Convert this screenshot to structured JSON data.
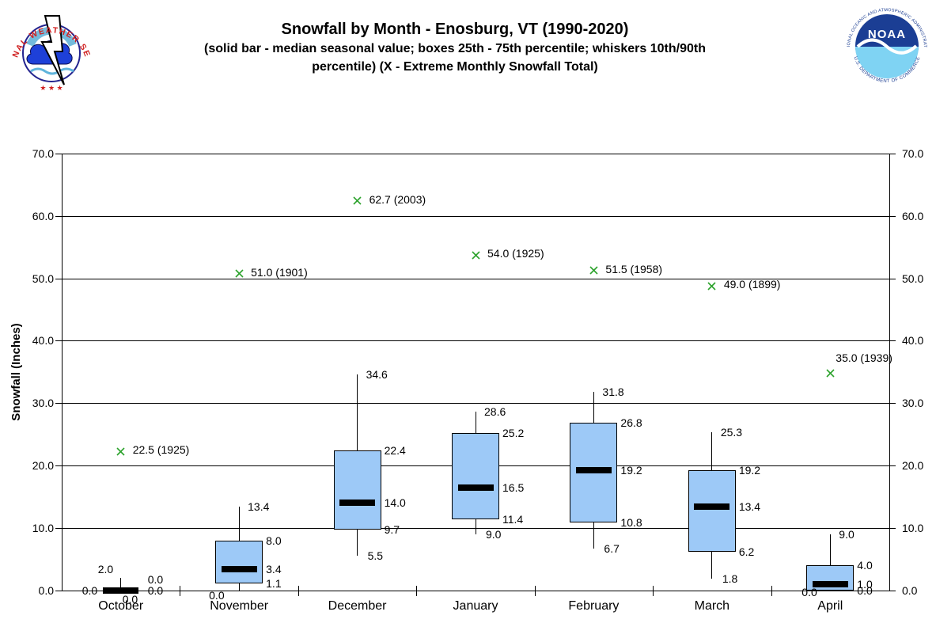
{
  "header": {
    "title": "Snowfall by Month - Enosburg, VT (1990-2020)",
    "subtitle_lines": [
      "(solid bar - median seasonal value; boxes 25th - 75th percentile; whiskers 10th/90th",
      "percentile) (X - Extreme Monthly Snowfall Total)"
    ],
    "nws_logo": {
      "ring_text": "NATIONAL WEATHER SERVICE",
      "stars": "★ ★ ★"
    },
    "noaa_logo": {
      "acronym": "NOAA",
      "ring_top": "NATIONAL OCEANIC AND ATMOSPHERIC ADMINISTRATION",
      "ring_bottom": "U.S. DEPARTMENT OF COMMERCE"
    }
  },
  "chart_data": {
    "type": "box",
    "title": "Snowfall by Month - Enosburg, VT (1990-2020)",
    "ylabel": "Snowfall (Inches)",
    "ylim": [
      0,
      70
    ],
    "ytick_step": 10,
    "ytick_format_decimals": 1,
    "grid": "horizontal",
    "legend_note": "solid bar - median; box 25th-75th percentile; whiskers 10th/90th percentile; X - extreme monthly total",
    "categories": [
      "October",
      "November",
      "December",
      "January",
      "February",
      "March",
      "April"
    ],
    "series": [
      {
        "month": "October",
        "p10": 0.0,
        "p25": 0.0,
        "median": 0.0,
        "p75": 0.0,
        "p90": 2.0,
        "extreme": {
          "value": 22.5,
          "year": 1925
        }
      },
      {
        "month": "November",
        "p10": 0.0,
        "p25": 1.1,
        "median": 3.4,
        "p75": 8.0,
        "p90": 13.4,
        "extreme": {
          "value": 51.0,
          "year": 1901
        }
      },
      {
        "month": "December",
        "p10": 5.5,
        "p25": 9.7,
        "median": 14.0,
        "p75": 22.4,
        "p90": 34.6,
        "extreme": {
          "value": 62.7,
          "year": 2003
        }
      },
      {
        "month": "January",
        "p10": 9.0,
        "p25": 11.4,
        "median": 16.5,
        "p75": 25.2,
        "p90": 28.6,
        "extreme": {
          "value": 54.0,
          "year": 1925
        }
      },
      {
        "month": "February",
        "p10": 6.7,
        "p25": 10.8,
        "median": 19.2,
        "p75": 26.8,
        "p90": 31.8,
        "extreme": {
          "value": 51.5,
          "year": 1958
        }
      },
      {
        "month": "March",
        "p10": 1.8,
        "p25": 6.2,
        "median": 13.4,
        "p75": 19.2,
        "p90": 25.3,
        "extreme": {
          "value": 49.0,
          "year": 1899
        }
      },
      {
        "month": "April",
        "p10": 0.0,
        "p25": 0.0,
        "median": 1.0,
        "p75": 4.0,
        "p90": 9.0,
        "extreme": {
          "value": 35.0,
          "year": 1939
        }
      }
    ],
    "colors": {
      "box_fill": "#9DC9F7",
      "box_border": "#000000",
      "median_bar": "#000000",
      "extreme_marker": "#2CA22C",
      "grid": "#000000",
      "text": "#000000"
    }
  }
}
